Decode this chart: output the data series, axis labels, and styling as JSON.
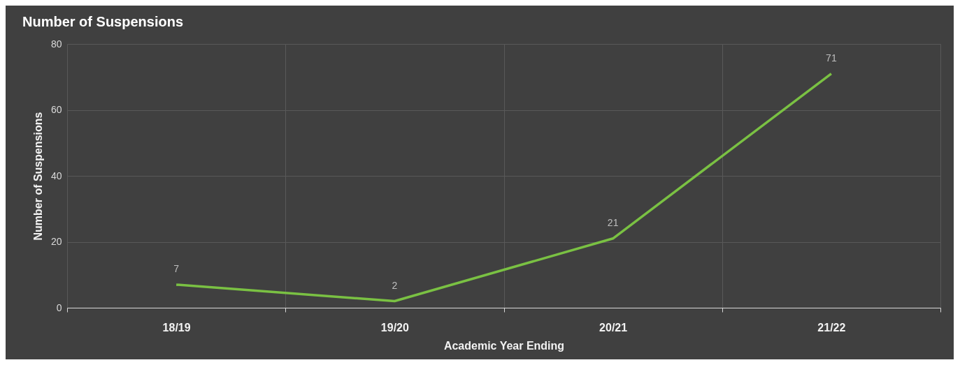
{
  "chart_data": {
    "type": "line",
    "title": "Number of Suspensions",
    "xlabel": "Academic Year Ending",
    "ylabel": "Number of Suspensions",
    "categories": [
      "18/19",
      "19/20",
      "20/21",
      "21/22"
    ],
    "series": [
      {
        "color": "#7ac143",
        "values": [
          7,
          2,
          21,
          71
        ]
      }
    ],
    "ylim": [
      0,
      80
    ],
    "yticks": [
      0,
      20,
      40,
      60,
      80
    ],
    "grid": true,
    "data_labels": true,
    "marker": "none",
    "line_style": "solid"
  }
}
